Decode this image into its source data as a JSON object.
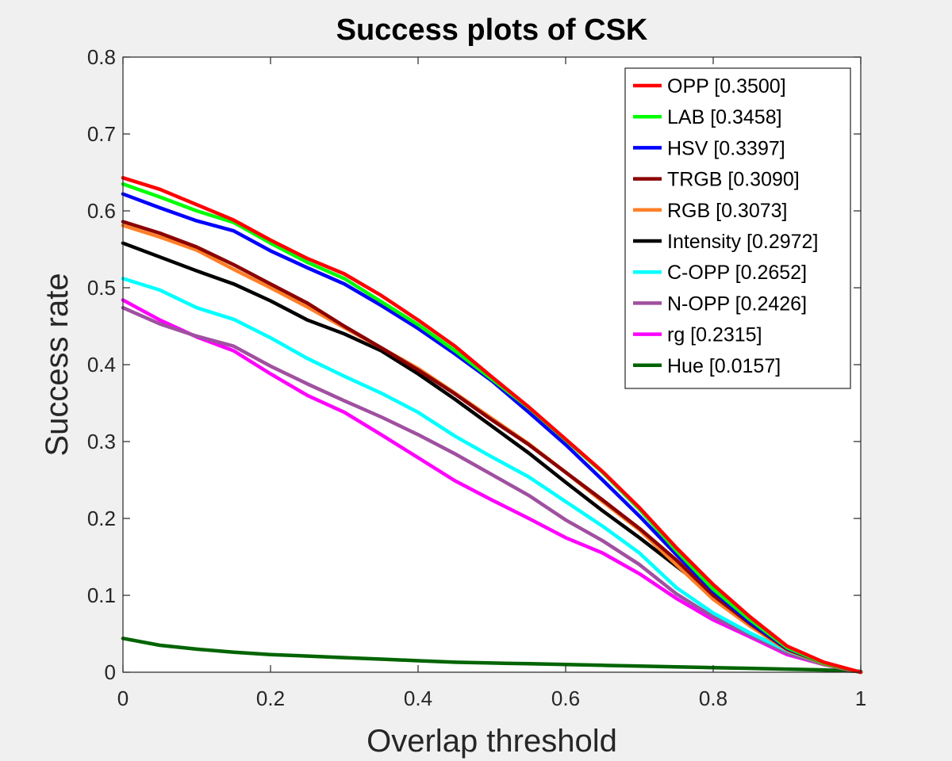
{
  "chart_data": {
    "type": "line",
    "title": "Success plots of CSK",
    "xlabel": "Overlap threshold",
    "ylabel": "Success rate",
    "xlim": [
      0,
      1
    ],
    "ylim": [
      0,
      0.8
    ],
    "xticks": [
      0,
      0.2,
      0.4,
      0.6,
      0.8,
      1
    ],
    "xtick_labels": [
      "0",
      "0.2",
      "0.4",
      "0.6",
      "0.8",
      "1"
    ],
    "yticks": [
      0,
      0.1,
      0.2,
      0.3,
      0.4,
      0.5,
      0.6,
      0.7,
      0.8
    ],
    "ytick_labels": [
      "0",
      "0.1",
      "0.2",
      "0.3",
      "0.4",
      "0.5",
      "0.6",
      "0.7",
      "0.8"
    ],
    "grid": false,
    "legend_position": "top-right",
    "x": [
      0,
      0.05,
      0.1,
      0.15,
      0.2,
      0.25,
      0.3,
      0.35,
      0.4,
      0.45,
      0.5,
      0.55,
      0.6,
      0.65,
      0.7,
      0.75,
      0.8,
      0.85,
      0.9,
      0.95,
      1
    ],
    "series": [
      {
        "name": "OPP [0.3500]",
        "color": "#ff0000",
        "values": [
          0.643,
          0.628,
          0.608,
          0.588,
          0.562,
          0.538,
          0.518,
          0.49,
          0.458,
          0.424,
          0.384,
          0.345,
          0.303,
          0.261,
          0.214,
          0.162,
          0.114,
          0.072,
          0.034,
          0.013,
          0.0
        ]
      },
      {
        "name": "LAB [0.3458]",
        "color": "#00ff00",
        "values": [
          0.635,
          0.618,
          0.6,
          0.585,
          0.558,
          0.533,
          0.512,
          0.482,
          0.452,
          0.418,
          0.381,
          0.344,
          0.302,
          0.26,
          0.212,
          0.158,
          0.108,
          0.068,
          0.032,
          0.012,
          0.0
        ]
      },
      {
        "name": "HSV [0.3397]",
        "color": "#0000ff",
        "values": [
          0.622,
          0.604,
          0.587,
          0.574,
          0.548,
          0.526,
          0.505,
          0.477,
          0.447,
          0.414,
          0.379,
          0.338,
          0.296,
          0.25,
          0.203,
          0.153,
          0.105,
          0.065,
          0.031,
          0.012,
          0.0
        ]
      },
      {
        "name": "TRGB [0.3090]",
        "color": "#8b0000",
        "values": [
          0.586,
          0.571,
          0.553,
          0.53,
          0.505,
          0.48,
          0.45,
          0.422,
          0.393,
          0.362,
          0.328,
          0.296,
          0.26,
          0.224,
          0.187,
          0.146,
          0.1,
          0.063,
          0.03,
          0.012,
          0.0
        ]
      },
      {
        "name": "RGB [0.3073]",
        "color": "#ff7f27",
        "values": [
          0.581,
          0.566,
          0.549,
          0.524,
          0.5,
          0.475,
          0.448,
          0.422,
          0.395,
          0.363,
          0.33,
          0.297,
          0.26,
          0.222,
          0.185,
          0.14,
          0.095,
          0.06,
          0.029,
          0.011,
          0.0
        ]
      },
      {
        "name": "Intensity [0.2972]",
        "color": "#000000",
        "values": [
          0.558,
          0.54,
          0.522,
          0.505,
          0.483,
          0.458,
          0.44,
          0.418,
          0.388,
          0.355,
          0.32,
          0.285,
          0.247,
          0.21,
          0.175,
          0.138,
          0.101,
          0.063,
          0.03,
          0.011,
          0.0
        ]
      },
      {
        "name": "C-OPP [0.2652]",
        "color": "#00ffff",
        "values": [
          0.512,
          0.497,
          0.474,
          0.459,
          0.435,
          0.408,
          0.385,
          0.363,
          0.338,
          0.307,
          0.28,
          0.254,
          0.222,
          0.19,
          0.155,
          0.11,
          0.077,
          0.051,
          0.028,
          0.011,
          0.0
        ]
      },
      {
        "name": "N-OPP [0.2426]",
        "color": "#a050a0",
        "values": [
          0.474,
          0.453,
          0.437,
          0.424,
          0.398,
          0.375,
          0.353,
          0.332,
          0.309,
          0.284,
          0.257,
          0.23,
          0.198,
          0.171,
          0.14,
          0.102,
          0.072,
          0.048,
          0.025,
          0.01,
          0.0
        ]
      },
      {
        "name": "rg [0.2315]",
        "color": "#ff00ff",
        "values": [
          0.484,
          0.458,
          0.436,
          0.418,
          0.388,
          0.36,
          0.338,
          0.309,
          0.279,
          0.249,
          0.224,
          0.2,
          0.175,
          0.155,
          0.128,
          0.096,
          0.068,
          0.046,
          0.023,
          0.01,
          0.0
        ]
      },
      {
        "name": "Hue [0.0157]",
        "color": "#006400",
        "values": [
          0.044,
          0.035,
          0.03,
          0.026,
          0.023,
          0.021,
          0.019,
          0.017,
          0.015,
          0.013,
          0.012,
          0.011,
          0.01,
          0.009,
          0.008,
          0.007,
          0.006,
          0.005,
          0.004,
          0.003,
          0.001
        ]
      }
    ]
  }
}
